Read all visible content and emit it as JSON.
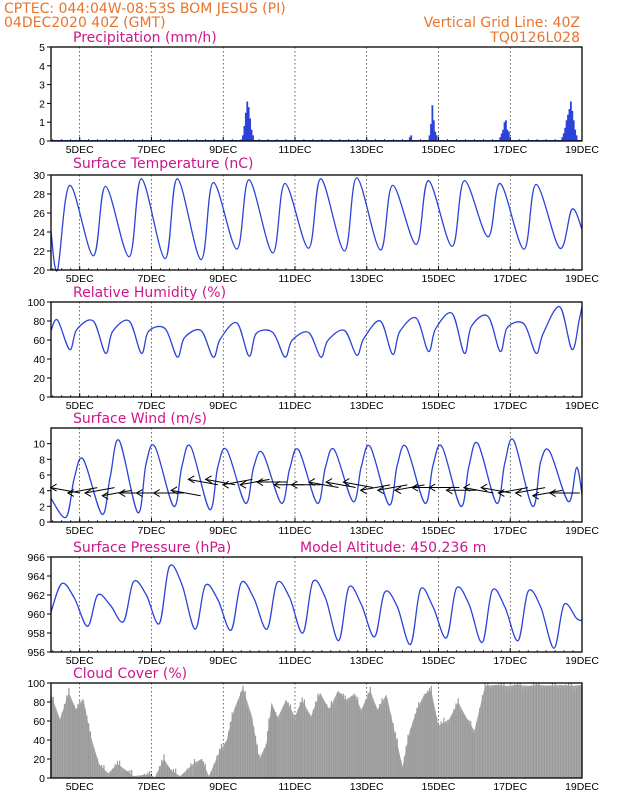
{
  "header": {
    "line1_left": "CPTEC:   044:04W-08:53S   BOM JESUS (PI)",
    "line2_left": "04DEC2020 40Z (GMT)",
    "line1_right": "Vertical Grid Line: 40Z",
    "line2_right": "TQ0126L028"
  },
  "colors": {
    "header": "#e8742c",
    "title": "#d0148c",
    "series": "#2b43d8",
    "cloud": "#a8a8a8",
    "wind_arrow": "#000000"
  },
  "chart_data": [
    {
      "type": "bar",
      "title": "Precipitation (mm/h)",
      "ylim": [
        0,
        5
      ],
      "yticks": [
        "0",
        "1",
        "2",
        "3",
        "4",
        "5"
      ],
      "xticks": [
        "5DEC",
        "7DEC",
        "9DEC",
        "11DEC",
        "13DEC",
        "15DEC",
        "17DEC",
        "19DEC"
      ],
      "events": [
        {
          "day": 9.55,
          "values": [
            0.3,
            0.8,
            1.5,
            2.1,
            1.8,
            1.2,
            0.6,
            0.3
          ]
        },
        {
          "day": 14.2,
          "values": [
            0.2,
            0.3
          ]
        },
        {
          "day": 14.75,
          "values": [
            0.3,
            0.9,
            1.9,
            1.1,
            0.5,
            0.3
          ]
        },
        {
          "day": 16.72,
          "values": [
            0.2,
            0.4,
            0.6,
            1.0,
            1.1,
            0.6
          ]
        },
        {
          "day": 16.92,
          "values": [
            0.3,
            0.5
          ]
        },
        {
          "day": 18.45,
          "values": [
            0.2,
            0.4,
            0.7,
            1.1,
            1.4,
            1.7,
            2.1,
            1.6,
            1.1,
            0.6,
            0.3
          ]
        }
      ]
    },
    {
      "type": "line",
      "title": "Surface Temperature (nC)",
      "ylim": [
        20,
        30
      ],
      "yticks": [
        "20",
        "22",
        "24",
        "26",
        "28",
        "30"
      ],
      "xticks": [
        "5DEC",
        "7DEC",
        "9DEC",
        "11DEC",
        "13DEC",
        "15DEC",
        "17DEC",
        "19DEC"
      ],
      "start_value": 24.0,
      "daily_min": [
        20.0,
        21.5,
        21.4,
        21.2,
        21.1,
        22.2,
        21.8,
        22.3,
        22.0,
        22.1,
        22.7,
        22.5,
        23.5,
        22.2,
        22.3
      ],
      "daily_max": [
        28.9,
        28.8,
        29.6,
        29.6,
        29.2,
        29.5,
        29.1,
        29.6,
        29.7,
        28.9,
        29.4,
        29.4,
        29.1,
        29.0,
        26.4
      ],
      "end_value": 24.3
    },
    {
      "type": "line",
      "title": "Relative Humidity (%)",
      "ylim": [
        0,
        100
      ],
      "yticks": [
        "0",
        "20",
        "40",
        "60",
        "80",
        "100"
      ],
      "xticks": [
        "5DEC",
        "7DEC",
        "9DEC",
        "11DEC",
        "13DEC",
        "15DEC",
        "17DEC",
        "19DEC"
      ],
      "start_value": 70,
      "daily_max": [
        81,
        80,
        80,
        72,
        70,
        78,
        68,
        68,
        70,
        80,
        83,
        88,
        85,
        77,
        95
      ],
      "daily_min": [
        50,
        46,
        46,
        42,
        42,
        43,
        42,
        42,
        44,
        45,
        48,
        46,
        48,
        46,
        50
      ],
      "end_value": 95
    },
    {
      "type": "line",
      "title": "Surface Wind (m/s)",
      "ylim": [
        0,
        12
      ],
      "yticks": [
        "0",
        "2",
        "4",
        "6",
        "8",
        "10"
      ],
      "xticks": [
        "5DEC",
        "7DEC",
        "9DEC",
        "11DEC",
        "13DEC",
        "15DEC",
        "17DEC",
        "19DEC"
      ],
      "start_value": 3.0,
      "daily_max": [
        8.0,
        8.0,
        10.4,
        9.6,
        9.6,
        9.2,
        8.8,
        9.2,
        9.2,
        9.6,
        9.6,
        9.6,
        10.0,
        10.4,
        9.0
      ],
      "daily_min": [
        0.6,
        1.0,
        1.2,
        2.0,
        1.6,
        2.4,
        2.4,
        2.4,
        2.6,
        2.2,
        2.4,
        2.0,
        2.4,
        2.0,
        2.6
      ],
      "end_value": 3.5,
      "arrows": "direction arrows along the series, mostly from the east"
    },
    {
      "type": "line",
      "title": "Surface Pressure (hPa)",
      "annotation": "Model Altitude: 450.236 m",
      "ylim": [
        956,
        966
      ],
      "yticks": [
        "956",
        "958",
        "960",
        "962",
        "964",
        "966"
      ],
      "xticks": [
        "5DEC",
        "7DEC",
        "9DEC",
        "11DEC",
        "13DEC",
        "15DEC",
        "17DEC",
        "19DEC"
      ],
      "start_value": 960.2,
      "daily_max": [
        963.2,
        962.0,
        963.4,
        965.0,
        963.0,
        963.3,
        963.3,
        963.4,
        962.8,
        962.3,
        962.6,
        962.7,
        962.5,
        962.4,
        961.0
      ],
      "daily_min": [
        958.5,
        958.7,
        959.2,
        959.0,
        958.4,
        958.3,
        958.4,
        958.0,
        957.2,
        957.6,
        956.8,
        957.5,
        957.0,
        957.2,
        956.4
      ],
      "end_value": 959.3
    },
    {
      "type": "area",
      "title": "Cloud Cover (%)",
      "ylim": [
        0,
        100
      ],
      "yticks": [
        "0",
        "20",
        "40",
        "60",
        "80",
        "100"
      ],
      "xticks": [
        "5DEC",
        "7DEC",
        "9DEC",
        "11DEC",
        "13DEC",
        "15DEC",
        "17DEC",
        "19DEC"
      ],
      "start_value": 75,
      "points": [
        [
          4.2,
          88
        ],
        [
          4.45,
          62
        ],
        [
          4.7,
          90
        ],
        [
          4.9,
          72
        ],
        [
          5.1,
          84
        ],
        [
          5.3,
          45
        ],
        [
          5.55,
          14
        ],
        [
          5.8,
          5
        ],
        [
          6.05,
          15
        ],
        [
          6.3,
          8
        ],
        [
          6.5,
          2
        ],
        [
          6.9,
          4
        ],
        [
          7.1,
          1
        ],
        [
          7.35,
          20
        ],
        [
          7.55,
          8
        ],
        [
          7.8,
          2
        ],
        [
          8.2,
          16
        ],
        [
          8.4,
          20
        ],
        [
          8.6,
          2
        ],
        [
          8.9,
          28
        ],
        [
          9.1,
          40
        ],
        [
          9.3,
          72
        ],
        [
          9.55,
          95
        ],
        [
          9.8,
          65
        ],
        [
          10.0,
          20
        ],
        [
          10.2,
          35
        ],
        [
          10.35,
          80
        ],
        [
          10.5,
          62
        ],
        [
          10.75,
          82
        ],
        [
          11.0,
          65
        ],
        [
          11.2,
          82
        ],
        [
          11.45,
          65
        ],
        [
          11.7,
          90
        ],
        [
          11.95,
          72
        ],
        [
          12.2,
          92
        ],
        [
          12.4,
          82
        ],
        [
          12.65,
          88
        ],
        [
          12.85,
          72
        ],
        [
          13.1,
          92
        ],
        [
          13.3,
          72
        ],
        [
          13.55,
          88
        ],
        [
          13.8,
          45
        ],
        [
          14.0,
          12
        ],
        [
          14.2,
          50
        ],
        [
          14.4,
          72
        ],
        [
          14.6,
          88
        ],
        [
          14.8,
          92
        ],
        [
          15.0,
          55
        ],
        [
          15.3,
          62
        ],
        [
          15.55,
          80
        ],
        [
          15.8,
          62
        ],
        [
          16.0,
          50
        ],
        [
          16.3,
          97
        ],
        [
          16.6,
          98
        ],
        [
          16.9,
          97
        ],
        [
          17.2,
          98
        ],
        [
          17.5,
          97
        ],
        [
          17.8,
          98
        ],
        [
          18.1,
          97
        ],
        [
          18.4,
          98
        ],
        [
          18.7,
          97
        ],
        [
          19.0,
          98
        ]
      ],
      "end_value": 98
    }
  ]
}
